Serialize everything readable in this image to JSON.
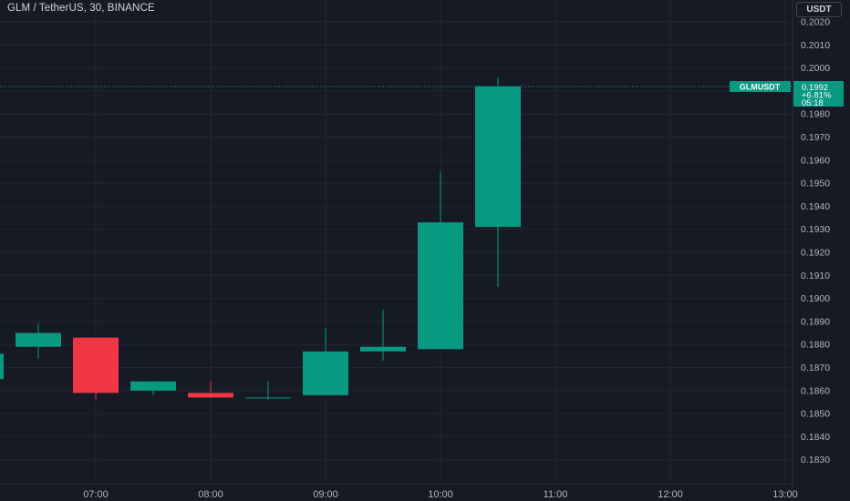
{
  "header": {
    "title": "GLM / TetherUS, 30, BINANCE",
    "currency": "USDT"
  },
  "last_price": {
    "symbol": "GLMUSDT",
    "price": "0.1992",
    "change": "+6.81%",
    "countdown": "05:18"
  },
  "colors": {
    "background": "#161a25",
    "up": "#089981",
    "down": "#f23645",
    "grid": "#232632"
  },
  "chart_data": {
    "type": "candlestick",
    "title": "GLM / TetherUS, 30, BINANCE",
    "ylim": [
      0.1825,
      0.2025
    ],
    "y_ticks": [
      "0.2020",
      "0.2010",
      "0.2000",
      "0.1990",
      "0.1980",
      "0.1970",
      "0.1960",
      "0.1950",
      "0.1940",
      "0.1930",
      "0.1920",
      "0.1910",
      "0.1900",
      "0.1890",
      "0.1880",
      "0.1870",
      "0.1860",
      "0.1850",
      "0.1840",
      "0.1830"
    ],
    "x_ticks": [
      {
        "label": "07:00",
        "t": 7.0
      },
      {
        "label": "08:00",
        "t": 8.0
      },
      {
        "label": "09:00",
        "t": 9.0
      },
      {
        "label": "10:00",
        "t": 10.0
      },
      {
        "label": "11:00",
        "t": 11.0
      },
      {
        "label": "12:00",
        "t": 12.0
      },
      {
        "label": "13:00",
        "t": 13.0
      }
    ],
    "candles": [
      {
        "t": 6.0,
        "open": 0.1865,
        "high": 0.1876,
        "low": 0.1865,
        "close": 0.1876
      },
      {
        "t": 6.5,
        "open": 0.1879,
        "high": 0.1889,
        "low": 0.1874,
        "close": 0.1885
      },
      {
        "t": 7.0,
        "open": 0.1883,
        "high": 0.1883,
        "low": 0.1856,
        "close": 0.1859
      },
      {
        "t": 7.5,
        "open": 0.186,
        "high": 0.1864,
        "low": 0.1858,
        "close": 0.1864
      },
      {
        "t": 8.0,
        "open": 0.1859,
        "high": 0.1864,
        "low": 0.1857,
        "close": 0.1857
      },
      {
        "t": 8.5,
        "open": 0.1857,
        "high": 0.1864,
        "low": 0.1856,
        "close": 0.1857
      },
      {
        "t": 9.0,
        "open": 0.1858,
        "high": 0.1887,
        "low": 0.1858,
        "close": 0.1877
      },
      {
        "t": 9.5,
        "open": 0.1877,
        "high": 0.1895,
        "low": 0.1873,
        "close": 0.1879
      },
      {
        "t": 10.0,
        "open": 0.1878,
        "high": 0.1955,
        "low": 0.1878,
        "close": 0.1933
      },
      {
        "t": 10.5,
        "open": 0.1931,
        "high": 0.1996,
        "low": 0.1905,
        "close": 0.1992
      }
    ],
    "grid": true,
    "last_price_line": 0.1992
  }
}
